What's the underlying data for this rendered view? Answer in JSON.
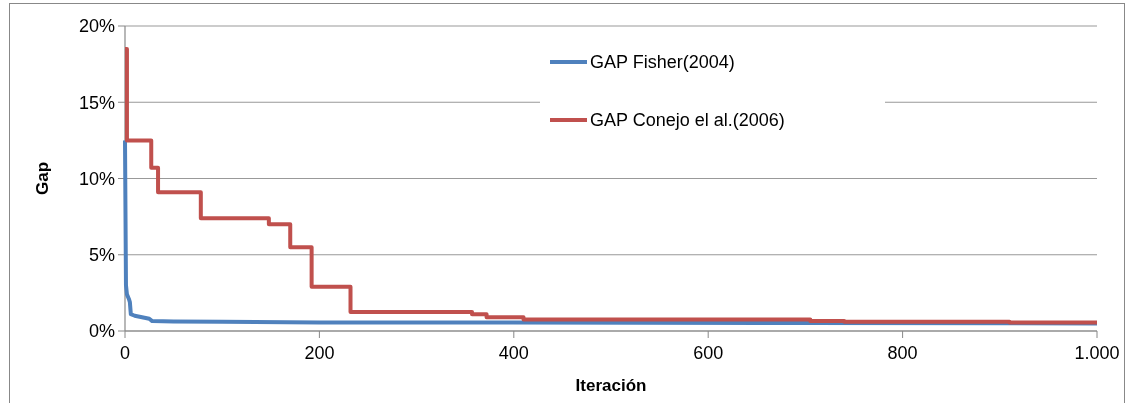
{
  "chart_data": {
    "type": "line",
    "xlabel": "Iteración",
    "ylabel": "Gap",
    "xlim": [
      0,
      1000
    ],
    "xticks": [
      0,
      200,
      400,
      600,
      800,
      {
        "value": 1000,
        "label": "1.000"
      }
    ],
    "ylim": [
      0,
      20
    ],
    "yticks": [
      {
        "value": 0,
        "label": "0%"
      },
      {
        "value": 5,
        "label": "5%"
      },
      {
        "value": 10,
        "label": "10%"
      },
      {
        "value": 15,
        "label": "15%"
      },
      {
        "value": 20,
        "label": "20%"
      }
    ],
    "grid": "y",
    "legend": "top",
    "line_style": "solid",
    "series": [
      {
        "name": "GAP Fisher(2004)",
        "color": "#4f81bd",
        "x": [
          0,
          1,
          2,
          4,
          5,
          6,
          10,
          25,
          28,
          50,
          100,
          200,
          400,
          700,
          1000
        ],
        "values": [
          12.5,
          3,
          2.4,
          2.1,
          1.9,
          1.1,
          1.0,
          0.8,
          0.65,
          0.62,
          0.6,
          0.55,
          0.55,
          0.52,
          0.5
        ]
      },
      {
        "name": "GAP Conejo el al.(2006)",
        "color": "#c0504d",
        "type": "step",
        "x": [
          0,
          2,
          27,
          34,
          78,
          148,
          170,
          192,
          232,
          357,
          372,
          410,
          705,
          740,
          910,
          1000
        ],
        "values": [
          18.5,
          12.5,
          10.7,
          9.1,
          7.4,
          7.0,
          5.5,
          2.9,
          1.25,
          1.1,
          0.9,
          0.75,
          0.65,
          0.6,
          0.55,
          0.55
        ]
      }
    ]
  }
}
